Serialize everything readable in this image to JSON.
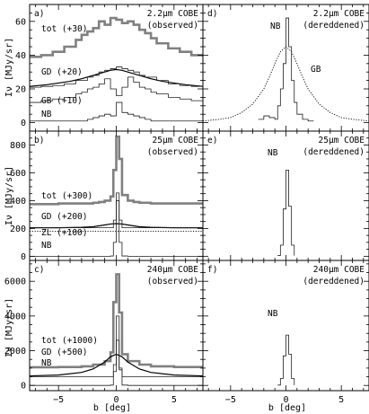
{
  "figure": {
    "xlabel": "b [deg]",
    "ylabel_rows": [
      "Iν [MJy/sr]",
      "Iν [MJy/sr]",
      "Iν [MJy/sr]"
    ],
    "colors": {
      "total": "#808080",
      "line": "#000000",
      "thin": "#202020"
    }
  },
  "chart_data": [
    {
      "panel": "a)",
      "title": "2.2μm COBE",
      "subtitle": "(observed)",
      "type": "line",
      "xlim": [
        -7.5,
        7.5
      ],
      "ylim": [
        -5,
        70
      ],
      "xticks": [
        -5,
        0,
        5
      ],
      "yticks": [
        0,
        20,
        40,
        60
      ],
      "series": [
        {
          "name": "tot (+30)",
          "style": "total-step",
          "x": [
            -7.5,
            -6.5,
            -5.5,
            -4.5,
            -3.5,
            -3,
            -2.5,
            -2,
            -1.5,
            -1,
            -0.5,
            0,
            0.5,
            1,
            1.5,
            2,
            2.5,
            3,
            3.5,
            4.5,
            5.5,
            6.5,
            7.5
          ],
          "y": [
            39,
            40,
            42,
            45,
            49,
            52,
            54,
            56,
            60,
            58,
            62,
            61,
            59,
            60,
            58,
            55,
            53,
            50,
            47,
            44,
            42,
            40,
            39
          ]
        },
        {
          "name": "GD (+20)",
          "style": "line",
          "x": [
            -7.5,
            -6,
            -5,
            -4,
            -3,
            -2,
            -1,
            -0.5,
            0,
            0.5,
            1,
            2,
            3,
            4,
            5,
            6,
            7.5
          ],
          "y": [
            21.5,
            22.5,
            23.5,
            24.5,
            26,
            28,
            30,
            31,
            31.5,
            31,
            30,
            28,
            26,
            24.5,
            23.5,
            22.5,
            21.5
          ]
        },
        {
          "name": "",
          "style": "thin-step",
          "x": [
            -7.5,
            -6.5,
            -5.5,
            -4.5,
            -3.5,
            -2.5,
            -2,
            -1.5,
            -1,
            -0.5,
            0,
            0.5,
            1,
            1.5,
            2,
            2.5,
            3.5,
            4.5,
            5.5,
            6.5,
            7.5
          ],
          "y": [
            21,
            21.5,
            22,
            23,
            25,
            27,
            28,
            30,
            31,
            32,
            33,
            32,
            31,
            30,
            28,
            27,
            25,
            23,
            22,
            21.5,
            21
          ]
        },
        {
          "name": "GB (+10)",
          "style": "thin-step",
          "x": [
            -7.5,
            -6.5,
            -5.5,
            -4.5,
            -3.5,
            -3,
            -2.5,
            -2,
            -1.5,
            -1,
            -0.5,
            0,
            0.5,
            1,
            1.5,
            2,
            2.5,
            3,
            3.5,
            4.5,
            5.5,
            6.5,
            7.5
          ],
          "y": [
            12,
            13,
            14,
            15,
            17,
            18,
            20,
            21,
            23,
            26,
            20,
            16,
            21,
            27,
            24,
            21,
            20,
            18,
            17,
            15,
            14,
            13,
            12
          ]
        },
        {
          "name": "NB",
          "style": "thin-step",
          "x": [
            -7.5,
            -5,
            -3,
            -2.5,
            -2,
            -1.5,
            -1,
            -0.5,
            0,
            0.5,
            1,
            1.5,
            2,
            2.5,
            3,
            5,
            7.5
          ],
          "y": [
            1,
            1,
            1,
            2,
            3,
            4,
            5,
            4,
            12,
            6,
            5,
            4,
            3,
            2,
            1,
            1,
            1
          ]
        }
      ]
    },
    {
      "panel": "d)",
      "title": "2.2μm COBE",
      "subtitle": "(dereddened)",
      "type": "line",
      "xlim": [
        -7.5,
        7.5
      ],
      "ylim": [
        -5,
        70
      ],
      "xticks": [
        -5,
        0,
        5
      ],
      "yticks": [
        0,
        20,
        40,
        60
      ],
      "series": [
        {
          "name": "NB",
          "style": "thin-step",
          "x": [
            -2.5,
            -2,
            -1.5,
            -1,
            -0.75,
            -0.5,
            -0.25,
            0,
            0.25,
            0.5,
            0.75,
            1,
            1.5,
            2,
            2.5
          ],
          "y": [
            2,
            4,
            3,
            2,
            10,
            20,
            35,
            62,
            45,
            25,
            12,
            5,
            2,
            1,
            1
          ]
        },
        {
          "name": "GB",
          "style": "dotted",
          "x": [
            -7.5,
            -6,
            -5,
            -4,
            -3,
            -2,
            -1.5,
            -1,
            -0.5,
            0,
            0.5,
            1,
            1.5,
            2,
            3,
            4,
            5,
            6,
            7.5
          ],
          "y": [
            1,
            2,
            3,
            6,
            11,
            20,
            27,
            35,
            42,
            45,
            42,
            35,
            27,
            20,
            11,
            6,
            3,
            2,
            1
          ]
        }
      ]
    },
    {
      "panel": "b)",
      "title": "25μm COBE",
      "subtitle": "(observed)",
      "type": "line",
      "xlim": [
        -7.5,
        7.5
      ],
      "ylim": [
        -30,
        900
      ],
      "xticks": [
        -5,
        0,
        5
      ],
      "yticks": [
        0,
        200,
        400,
        600,
        800
      ],
      "series": [
        {
          "name": "tot (+300)",
          "style": "total-step",
          "x": [
            -7.5,
            -5,
            -3,
            -2,
            -1.5,
            -1,
            -0.5,
            -0.25,
            0,
            0.25,
            0.5,
            1,
            1.5,
            2,
            3,
            5,
            7.5
          ],
          "y": [
            375,
            380,
            380,
            385,
            390,
            400,
            430,
            620,
            860,
            700,
            440,
            400,
            390,
            385,
            380,
            380,
            375
          ]
        },
        {
          "name": "GD (+200)",
          "style": "line",
          "x": [
            -7.5,
            -5,
            -3,
            -2,
            -1,
            -0.5,
            0,
            0.5,
            1,
            2,
            3,
            5,
            7.5
          ],
          "y": [
            205,
            205,
            208,
            212,
            225,
            232,
            235,
            232,
            225,
            212,
            208,
            205,
            205
          ]
        },
        {
          "name": "ZL (+100)",
          "style": "dotted",
          "x": [
            -7.5,
            7.5
          ],
          "y": [
            180,
            180
          ]
        },
        {
          "name": "",
          "style": "thin-step",
          "x": [
            -7.5,
            -0.5,
            -0.25,
            0,
            0.25,
            0.5,
            7.5
          ],
          "y": [
            205,
            205,
            260,
            455,
            260,
            205,
            205
          ]
        },
        {
          "name": "NB",
          "style": "thin-step",
          "x": [
            -7.5,
            -1,
            -0.5,
            -0.25,
            0,
            0.25,
            0.5,
            1,
            7.5
          ],
          "y": [
            0,
            0,
            2,
            100,
            400,
            100,
            2,
            0,
            0
          ]
        }
      ]
    },
    {
      "panel": "e)",
      "title": "25μm COBE",
      "subtitle": "(dereddened)",
      "type": "line",
      "xlim": [
        -7.5,
        7.5
      ],
      "ylim": [
        -30,
        900
      ],
      "xticks": [
        -5,
        0,
        5
      ],
      "yticks": [
        0,
        200,
        400,
        600,
        800
      ],
      "series": [
        {
          "name": "NB",
          "style": "thin-step",
          "x": [
            -0.75,
            -0.5,
            -0.25,
            0,
            0.25,
            0.5,
            0.75
          ],
          "y": [
            5,
            80,
            340,
            620,
            360,
            80,
            5
          ]
        }
      ]
    },
    {
      "panel": "c)",
      "title": "240μm COBE",
      "subtitle": "(observed)",
      "type": "line",
      "xlim": [
        -7.5,
        7.5
      ],
      "ylim": [
        -300,
        7200
      ],
      "xticks": [
        -5,
        0,
        5
      ],
      "yticks": [
        0,
        2000,
        4000,
        6000
      ],
      "series": [
        {
          "name": "tot (+1000)",
          "style": "total-step",
          "x": [
            -7.5,
            -5,
            -3,
            -2,
            -1,
            -0.5,
            -0.25,
            0,
            0.25,
            0.5,
            1,
            2,
            3,
            5,
            7.5
          ],
          "y": [
            1050,
            1060,
            1100,
            1200,
            1400,
            1900,
            4800,
            6400,
            4200,
            1800,
            1400,
            1200,
            1100,
            1060,
            1050
          ]
        },
        {
          "name": "GD (+500)",
          "style": "line",
          "x": [
            -7.5,
            -5,
            -3,
            -2,
            -1,
            -0.5,
            0,
            0.5,
            1,
            2,
            3,
            5,
            7.5
          ],
          "y": [
            550,
            600,
            750,
            950,
            1350,
            1650,
            1800,
            1650,
            1350,
            950,
            750,
            600,
            550
          ]
        },
        {
          "name": "",
          "style": "thin-step",
          "x": [
            -7.5,
            -0.5,
            -0.25,
            0,
            0.25,
            0.5,
            7.5
          ],
          "y": [
            500,
            500,
            1200,
            4000,
            1000,
            500,
            500
          ]
        },
        {
          "name": "NB",
          "style": "thin-step",
          "x": [
            -7.5,
            -1,
            -0.5,
            -0.25,
            0,
            0.25,
            0.5,
            1,
            7.5
          ],
          "y": [
            0,
            0,
            20,
            800,
            2600,
            900,
            20,
            0,
            0
          ]
        }
      ]
    },
    {
      "panel": "f)",
      "title": "240μm COBE",
      "subtitle": "(dereddened)",
      "type": "line",
      "xlim": [
        -7.5,
        7.5
      ],
      "ylim": [
        -300,
        7200
      ],
      "xticks": [
        -5,
        0,
        5
      ],
      "yticks": [
        0,
        2000,
        4000,
        6000
      ],
      "series": [
        {
          "name": "NB",
          "style": "thin-step",
          "x": [
            -0.75,
            -0.5,
            -0.25,
            0,
            0.25,
            0.5,
            0.75
          ],
          "y": [
            20,
            400,
            1700,
            2900,
            1800,
            400,
            20
          ]
        }
      ]
    }
  ]
}
